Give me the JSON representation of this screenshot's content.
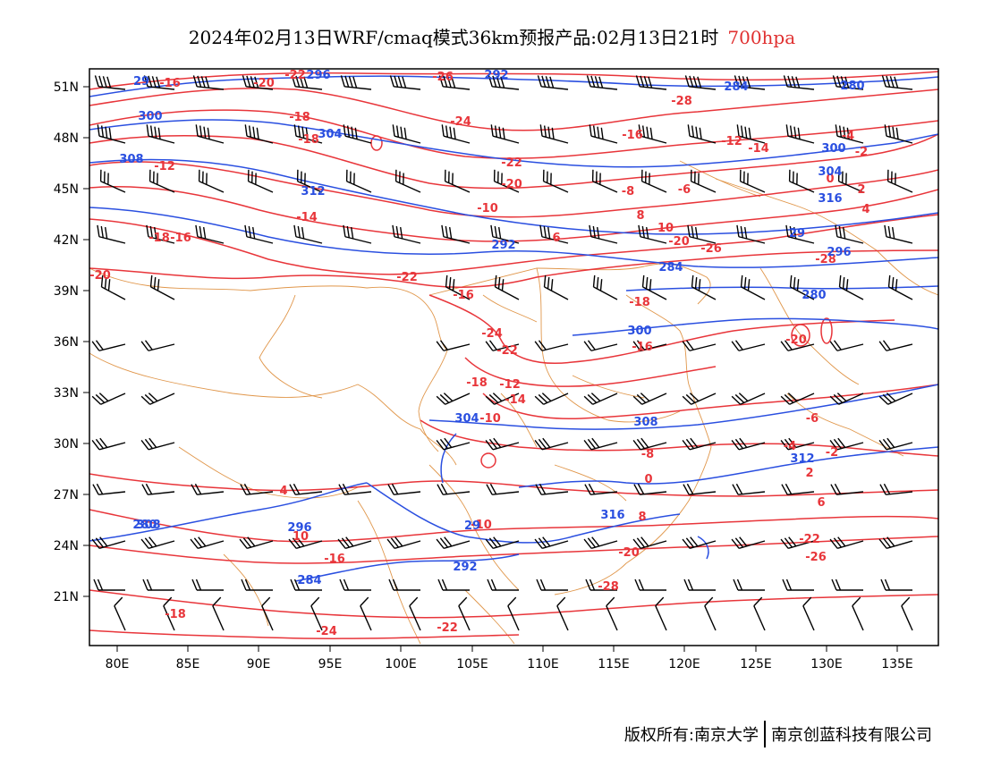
{
  "title": {
    "main": "2024年02月13日WRF/cmaq模式36km预报产品:02月13日21时",
    "level": "700hpa"
  },
  "axes": {
    "lon_labels": [
      "80E",
      "85E",
      "90E",
      "95E",
      "100E",
      "105E",
      "110E",
      "115E",
      "120E",
      "125E",
      "130E",
      "135E"
    ],
    "lat_labels": [
      "51N",
      "48N",
      "45N",
      "42N",
      "39N",
      "36N",
      "33N",
      "30N",
      "27N",
      "24N",
      "21N"
    ]
  },
  "colors": {
    "temperature": "#e8353a",
    "height": "#2a4fe0",
    "border": "#e0964a",
    "wind": "#000000",
    "frame": "#000000"
  },
  "temperature_labels": [
    "-22",
    "-16",
    "-20",
    "-26",
    "-28",
    "-18",
    "-24",
    "-22",
    "-20",
    "-18",
    "-16",
    "-12",
    "-14",
    "-10",
    "-8",
    "-6",
    "-4",
    "-2",
    "0",
    "2",
    "4",
    "6",
    "8",
    "10"
  ],
  "height_labels": [
    "29",
    "296",
    "292",
    "284",
    "280",
    "300",
    "304",
    "308",
    "312",
    "316"
  ],
  "footer": {
    "left": "版权所有:南京大学",
    "right": "南京创蓝科技有限公司"
  }
}
